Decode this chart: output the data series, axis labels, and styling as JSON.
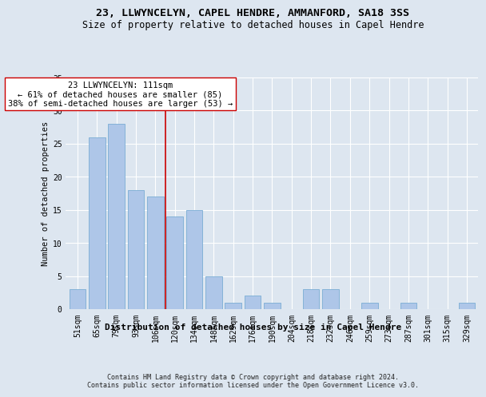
{
  "title": "23, LLWYNCELYN, CAPEL HENDRE, AMMANFORD, SA18 3SS",
  "subtitle": "Size of property relative to detached houses in Capel Hendre",
  "xlabel": "Distribution of detached houses by size in Capel Hendre",
  "ylabel": "Number of detached properties",
  "bar_color": "#aec6e8",
  "bar_edge_color": "#7aadd4",
  "background_color": "#dde6f0",
  "grid_color": "#ffffff",
  "categories": [
    "51sqm",
    "65sqm",
    "79sqm",
    "93sqm",
    "106sqm",
    "120sqm",
    "134sqm",
    "148sqm",
    "162sqm",
    "176sqm",
    "190sqm",
    "204sqm",
    "218sqm",
    "232sqm",
    "246sqm",
    "259sqm",
    "273sqm",
    "287sqm",
    "301sqm",
    "315sqm",
    "329sqm"
  ],
  "values": [
    3,
    26,
    28,
    18,
    17,
    14,
    15,
    5,
    1,
    2,
    1,
    0,
    3,
    3,
    0,
    1,
    0,
    1,
    0,
    0,
    1
  ],
  "vline_x": 4.5,
  "vline_color": "#cc0000",
  "annotation_text": "23 LLWYNCELYN: 111sqm\n← 61% of detached houses are smaller (85)\n38% of semi-detached houses are larger (53) →",
  "annotation_box_color": "white",
  "annotation_box_edge_color": "#cc0000",
  "ylim": [
    0,
    35
  ],
  "yticks": [
    0,
    5,
    10,
    15,
    20,
    25,
    30,
    35
  ],
  "footer": "Contains HM Land Registry data © Crown copyright and database right 2024.\nContains public sector information licensed under the Open Government Licence v3.0.",
  "title_fontsize": 9.5,
  "subtitle_fontsize": 8.5,
  "xlabel_fontsize": 8,
  "ylabel_fontsize": 7.5,
  "tick_fontsize": 7,
  "annotation_fontsize": 7.5,
  "footer_fontsize": 6
}
